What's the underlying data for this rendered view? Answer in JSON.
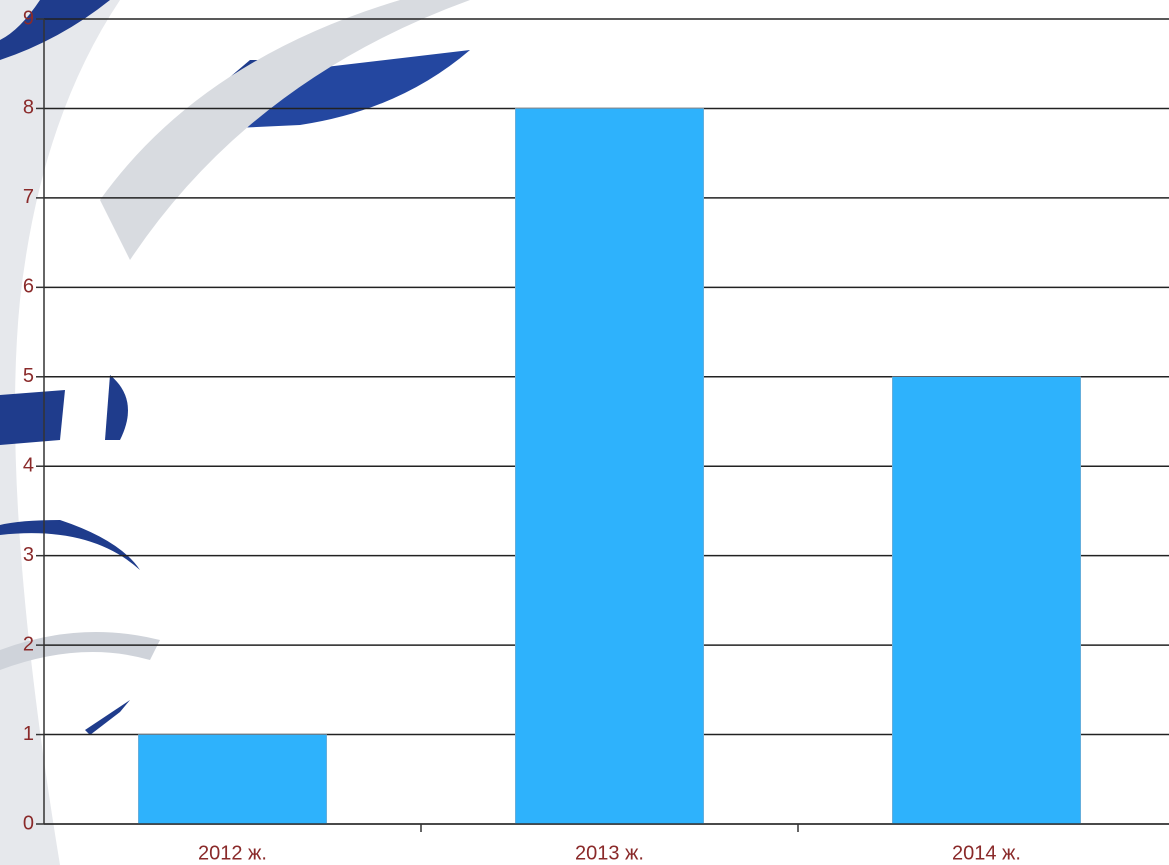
{
  "chart_data": {
    "type": "bar",
    "categories": [
      "2012 ж.",
      "2013 ж.",
      "2014 ж."
    ],
    "values": [
      1,
      8,
      5
    ],
    "color": "#2eb2fc",
    "ylim": [
      0,
      9
    ],
    "yticks": [
      0,
      1,
      2,
      3,
      4,
      5,
      6,
      7,
      8,
      9
    ],
    "grid": true
  }
}
